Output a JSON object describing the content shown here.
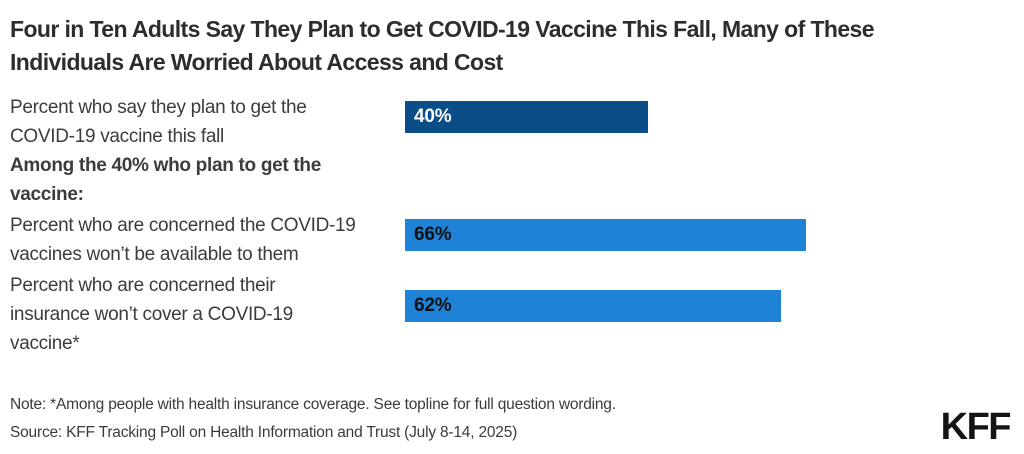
{
  "title": {
    "text": "Four in Ten Adults Say They Plan to Get COVID-19 Vaccine This Fall, Many of These Individuals Are Worried About Access and Cost",
    "lines": [
      "Four in Ten Adults Say They Plan to Get COVID-19 Vaccine This Fall, Many of These",
      "Individuals Are Worried About Access and Cost"
    ]
  },
  "chart_data": {
    "type": "bar",
    "orientation": "horizontal",
    "title": "Four in Ten Adults Say They Plan to Get COVID-19 Vaccine This Fall, Many of These Individuals Are Worried About Access and Cost",
    "categories": [
      "Percent who say they plan to get the COVID-19 vaccine this fall",
      "Percent who are concerned the COVID-19 vaccines won’t be available to them",
      "Percent who are concerned their insurance won’t cover a COVID-19 vaccine*"
    ],
    "values": [
      40,
      66,
      62
    ],
    "data_labels": [
      "40%",
      "66%",
      "62%"
    ],
    "group_note": "Among the 40% who plan to get the vaccine:",
    "xlim": [
      0,
      100
    ],
    "grid": false,
    "legend": "none",
    "bar_colors": [
      "#0b4d87",
      "#1e83d7",
      "#1e83d7"
    ]
  },
  "rows": [
    {
      "label": "Percent who say they plan to get the COVID-19 vaccine this fall",
      "lines": [
        "Percent who say they plan to get the",
        "COVID-19 vaccine this fall"
      ],
      "value": 40,
      "value_label": "40%"
    },
    {
      "label": "Percent who are concerned the COVID-19 vaccines won’t be available to them",
      "lines": [
        "Percent who are concerned the COVID-19",
        "vaccines won’t be available to them"
      ],
      "value": 66,
      "value_label": "66%"
    },
    {
      "label": "Percent who are concerned their insurance won’t cover a COVID-19 vaccine*",
      "lines": [
        "Percent who are concerned their",
        "insurance won’t cover a COVID-19",
        "vaccine*"
      ],
      "value": 62,
      "value_label": "62%"
    }
  ],
  "subhead": {
    "text": "Among the 40% who plan to get the vaccine:",
    "lines": [
      "Among the 40% who plan to get the",
      "vaccine:"
    ]
  },
  "footer": {
    "note": "Note: *Among people with health insurance coverage. See topline for full question wording.",
    "source": "Source: KFF Tracking Poll on Health Information and Trust (July 8-14, 2025)",
    "logo": "KFF"
  }
}
